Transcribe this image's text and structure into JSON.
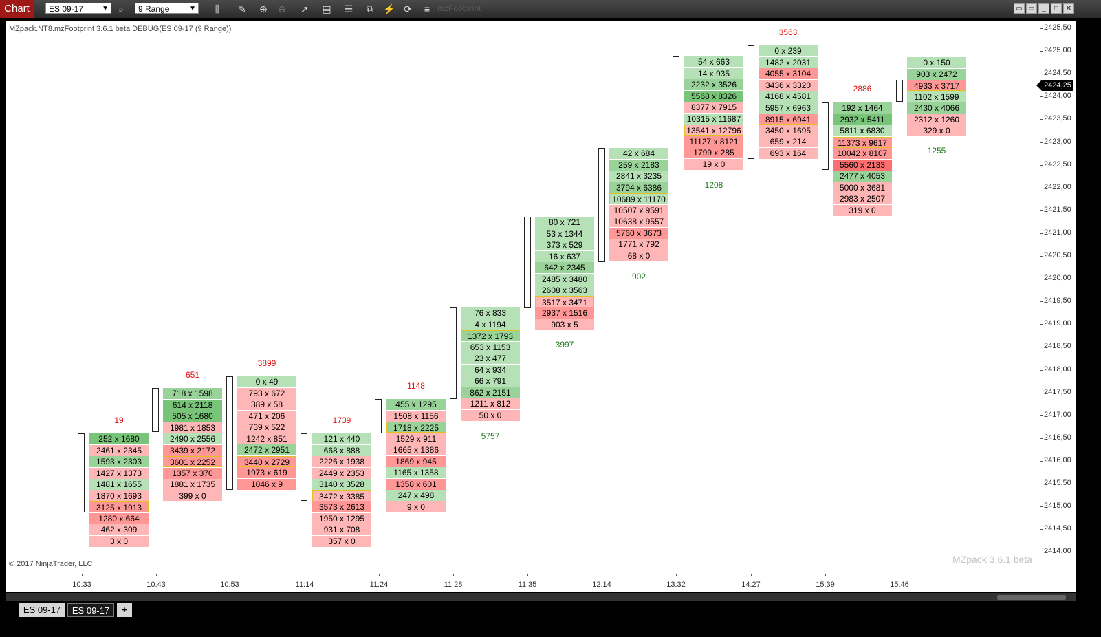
{
  "toolbar": {
    "chart_tab": "Chart",
    "instrument": "ES 09-17",
    "period": "9 Range",
    "indicator_name": "mzFootprint"
  },
  "chart": {
    "title": "MZpack.NT8.mzFootprint 3.6.1 beta DEBUG(ES 09-17 (9 Range))",
    "copyright": "© 2017 NinjaTrader, LLC",
    "watermark": "MZpack 3.6.1 beta",
    "current_price": "2424,25",
    "colors": {
      "up": "#4caf50",
      "down": "#e53935",
      "poc_border": "#e3c21f",
      "green_shades": [
        "#b6e0b6",
        "#9ad39a",
        "#78c478"
      ],
      "red_shades": [
        "#ffb6b6",
        "#ff9797",
        "#ff6f6f"
      ]
    }
  },
  "y_axis": {
    "labels": [
      "2425,50",
      "2425,00",
      "2424,50",
      "2424,00",
      "2423,50",
      "2423,00",
      "2422,50",
      "2422,00",
      "2421,50",
      "2421,00",
      "2420,50",
      "2420,00",
      "2419,50",
      "2419,00",
      "2418,50",
      "2418,00",
      "2417,50",
      "2417,00",
      "2416,50",
      "2416,00",
      "2415,50",
      "2415,00",
      "2414,50",
      "2414,00"
    ]
  },
  "x_axis": {
    "labels": [
      "10:33",
      "10:43",
      "10:53",
      "11:14",
      "11:24",
      "11:28",
      "11:35",
      "12:14",
      "13:32",
      "14:27",
      "15:39",
      "15:46"
    ]
  },
  "bars": [
    {
      "time": "10:33",
      "delta": "19",
      "delta_dir": "down",
      "cells": [
        [
          "252 x 1680",
          3
        ],
        [
          "2461 x 2345",
          -1
        ],
        [
          "1593 x 2303",
          2
        ],
        [
          "1427 x 1373",
          -1
        ],
        [
          "1481 x 1655",
          1
        ],
        [
          "1870 x 1693",
          -1
        ],
        [
          "3125 x 1913",
          -2,
          "poc"
        ],
        [
          "1280 x 664",
          -2
        ],
        [
          "462 x 309",
          -1
        ],
        [
          "3 x 0",
          -1
        ]
      ]
    },
    {
      "time": "10:43",
      "delta": "651",
      "delta_dir": "down",
      "cells": [
        [
          "718 x 1598",
          2
        ],
        [
          "614 x 2118",
          3
        ],
        [
          "505 x 1680",
          3
        ],
        [
          "1981 x 1853",
          -1
        ],
        [
          "2490 x 2556",
          1
        ],
        [
          "3439 x 2172",
          -2
        ],
        [
          "3601 x 2252",
          -2,
          "poc"
        ],
        [
          "1357 x 370",
          -2
        ],
        [
          "1881 x 1735",
          -1
        ],
        [
          "399 x 0",
          -1
        ]
      ]
    },
    {
      "time": "10:53",
      "delta": "3899",
      "delta_dir": "down",
      "cells": [
        [
          "0 x 49",
          1
        ],
        [
          "793 x 672",
          -1
        ],
        [
          "389 x 58",
          -1
        ],
        [
          "471 x 206",
          -1
        ],
        [
          "739 x 522",
          -1
        ],
        [
          "1242 x 851",
          -1
        ],
        [
          "2472 x 2951",
          2
        ],
        [
          "3440 x 2729",
          -2,
          "poc"
        ],
        [
          "1973 x 619",
          -2
        ],
        [
          "1046 x 9",
          -2
        ]
      ]
    },
    {
      "time": "11:14",
      "delta": "1739",
      "delta_dir": "down",
      "cells": [
        [
          "121 x 440",
          1
        ],
        [
          "668 x 888",
          1
        ],
        [
          "2226 x 1938",
          -1
        ],
        [
          "2449 x 2353",
          -1
        ],
        [
          "3140 x 3528",
          1
        ],
        [
          "3472 x 3385",
          -1,
          "poc"
        ],
        [
          "3573 x 2613",
          -2
        ],
        [
          "1950 x 1295",
          -1
        ],
        [
          "931 x 708",
          -1
        ],
        [
          "357 x 0",
          -1
        ]
      ]
    },
    {
      "time": "11:24",
      "delta": "1148",
      "delta_dir": "down",
      "cells": [
        [
          "455 x 1295",
          2
        ],
        [
          "1508 x 1156",
          -1
        ],
        [
          "1718 x 2225",
          2,
          "poc"
        ],
        [
          "1529 x 911",
          -1
        ],
        [
          "1665 x 1386",
          -1
        ],
        [
          "1869 x 945",
          -2
        ],
        [
          "1165 x 1358",
          1
        ],
        [
          "1358 x 601",
          -2
        ],
        [
          "247 x 498",
          1
        ],
        [
          "9 x 0",
          -1
        ]
      ]
    },
    {
      "time": "11:28",
      "delta": "5757",
      "delta_dir": "up",
      "cells": [
        [
          "76 x 833",
          1
        ],
        [
          "4 x 1194",
          1
        ],
        [
          "1372 x 1793",
          2,
          "poc"
        ],
        [
          "653 x 1153",
          1
        ],
        [
          "23 x 477",
          1
        ],
        [
          "64 x 934",
          1
        ],
        [
          "66 x 791",
          1
        ],
        [
          "862 x 2151",
          2
        ],
        [
          "1211 x 812",
          -1
        ],
        [
          "50 x 0",
          -1
        ]
      ]
    },
    {
      "time": "11:35",
      "delta": "3997",
      "delta_dir": "up",
      "cells": [
        [
          "80 x 721",
          1
        ],
        [
          "53 x 1344",
          1
        ],
        [
          "373 x 529",
          1
        ],
        [
          "16 x 637",
          1
        ],
        [
          "642 x 2345",
          2
        ],
        [
          "2485 x 3480",
          1
        ],
        [
          "2608 x 3563",
          1
        ],
        [
          "3517 x 3471",
          -1,
          "poc"
        ],
        [
          "2937 x 1516",
          -2
        ],
        [
          "903 x 5",
          -1
        ]
      ]
    },
    {
      "time": "12:14",
      "delta": "902",
      "delta_dir": "up",
      "cells": [
        [
          "42 x 684",
          1
        ],
        [
          "259 x 2183",
          2
        ],
        [
          "2841 x 3235",
          1
        ],
        [
          "3794 x 6386",
          2
        ],
        [
          "10689 x 11170",
          1,
          "poc"
        ],
        [
          "10507 x 9591",
          -1
        ],
        [
          "10638 x 9557",
          -1
        ],
        [
          "5760 x 3673",
          -2
        ],
        [
          "1771 x 792",
          -1
        ],
        [
          "68 x 0",
          -1
        ]
      ]
    },
    {
      "time": "13:32",
      "delta": "1208",
      "delta_dir": "up",
      "cells": [
        [
          "54 x 663",
          1
        ],
        [
          "14 x 935",
          1
        ],
        [
          "2232 x 3526",
          2
        ],
        [
          "5568 x 8326",
          3
        ],
        [
          "8377 x 7915",
          -1
        ],
        [
          "10315 x 11687",
          1
        ],
        [
          "13541 x 12796",
          -1,
          "poc"
        ],
        [
          "11127 x 8121",
          -2
        ],
        [
          "1799 x 285",
          -2
        ],
        [
          "19 x 0",
          -1
        ]
      ]
    },
    {
      "time": "14:27",
      "delta": "3563",
      "delta_dir": "down",
      "cells": [
        [
          "0 x 239",
          1
        ],
        [
          "1482 x 2031",
          1
        ],
        [
          "4055 x 3104",
          -2
        ],
        [
          "3436 x 3320",
          -1
        ],
        [
          "4168 x 4581",
          1
        ],
        [
          "5957 x 6963",
          1
        ],
        [
          "8915 x 6941",
          -2,
          "poc"
        ],
        [
          "3450 x 1695",
          -1
        ],
        [
          "659 x 214",
          -1
        ],
        [
          "693 x 164",
          -1
        ]
      ]
    },
    {
      "time": "15:39",
      "delta": "2886",
      "delta_dir": "down",
      "cells": [
        [
          "192 x 1464",
          2
        ],
        [
          "2932 x 5411",
          3
        ],
        [
          "5811 x 6830",
          1
        ],
        [
          "11373 x 9617",
          -2,
          "poc"
        ],
        [
          "10042 x 8107",
          -2
        ],
        [
          "5560 x 2133",
          -3
        ],
        [
          "2477 x 4053",
          2
        ],
        [
          "5000 x 3681",
          -1
        ],
        [
          "2983 x 2507",
          -1
        ],
        [
          "319 x 0",
          -1
        ]
      ]
    },
    {
      "time": "15:46",
      "delta": "1255",
      "delta_dir": "up",
      "cells": [
        [
          "0 x 150",
          1
        ],
        [
          "903 x 2472",
          2
        ],
        [
          "4933 x 3717",
          -2,
          "poc"
        ],
        [
          "1102 x 1599",
          1
        ],
        [
          "2430 x 4066",
          2
        ],
        [
          "2312 x 1260",
          -1
        ],
        [
          "329 x 0",
          -1
        ]
      ]
    }
  ],
  "bottom_tabs": [
    {
      "label": "ES 09-17"
    },
    {
      "label": "ES 09-17"
    }
  ],
  "add_tab": "+"
}
